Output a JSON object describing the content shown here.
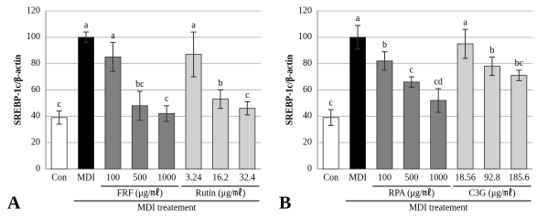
{
  "chart_data": [
    {
      "type": "bar",
      "panel": "A",
      "ylabel": "SREBP-1c/β-actin",
      "categories": [
        "Con",
        "MDI",
        "100",
        "500",
        "1000",
        "3.24",
        "16.2",
        "32.4"
      ],
      "values": [
        39,
        100,
        85,
        48,
        42,
        87,
        53,
        46
      ],
      "errors": [
        5,
        4,
        11,
        11,
        6,
        17,
        7,
        5
      ],
      "annotations": [
        "c",
        "a",
        "a",
        "bc",
        "c",
        "a",
        "b",
        "c"
      ],
      "colors": [
        "#ffffff",
        "#000000",
        "#808080",
        "#808080",
        "#808080",
        "#d0d0d0",
        "#d0d0d0",
        "#d0d0d0"
      ],
      "group_labels": [
        "FRF (μg/㎖)",
        "Rutin (μg/㎖)"
      ],
      "xlabel": "MDI treatement",
      "ylim": [
        0,
        120
      ],
      "yticks": [
        0,
        20,
        40,
        60,
        80,
        100,
        120
      ],
      "grid": true
    },
    {
      "type": "bar",
      "panel": "B",
      "ylabel": "SREBP-1c/β-actin",
      "categories": [
        "Con",
        "MDI",
        "100",
        "500",
        "1000",
        "18.56",
        "92.8",
        "185.6"
      ],
      "values": [
        39,
        100,
        82,
        66,
        52,
        95,
        78,
        71
      ],
      "errors": [
        6,
        9,
        7,
        4,
        9,
        11,
        7,
        4
      ],
      "annotations": [
        "c",
        "a",
        "b",
        "c",
        "cd",
        "a",
        "b",
        "bc"
      ],
      "colors": [
        "#ffffff",
        "#000000",
        "#808080",
        "#808080",
        "#808080",
        "#d0d0d0",
        "#d0d0d0",
        "#d0d0d0"
      ],
      "group_labels": [
        "RPA (μg/㎖)",
        "C3G (μg/㎖)"
      ],
      "xlabel": "MDI treatement",
      "ylim": [
        0,
        120
      ],
      "yticks": [
        0,
        20,
        40,
        60,
        80,
        100,
        120
      ],
      "grid": true
    }
  ]
}
